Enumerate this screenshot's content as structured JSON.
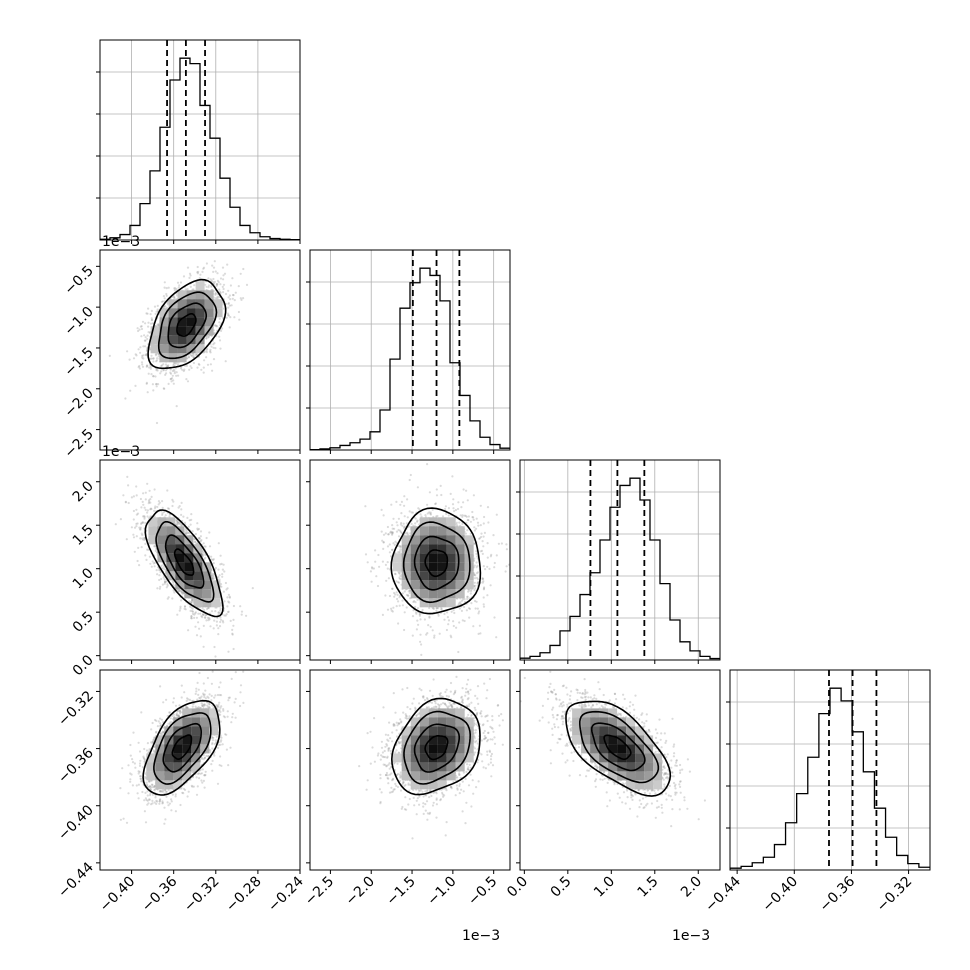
{
  "chart_data": {
    "type": "corner",
    "parameters": [
      {
        "range": [
          -0.43,
          -0.24
        ],
        "hist": [
          0.004,
          0.012,
          0.03,
          0.08,
          0.2,
          0.38,
          0.62,
          0.88,
          1.0,
          0.97,
          0.74,
          0.56,
          0.34,
          0.18,
          0.08,
          0.04,
          0.018,
          0.008,
          0.004,
          0.002
        ],
        "quantiles": [
          -0.3663,
          -0.3484,
          -0.3302
        ],
        "ticks": [
          -0.4,
          -0.36,
          -0.32,
          -0.28,
          -0.24
        ],
        "tick_labels": [
          "−0.40",
          "−0.36",
          "−0.32",
          "−0.28",
          "−0.24"
        ],
        "offset": ""
      },
      {
        "range": [
          -2.75,
          -0.3
        ],
        "hist": [
          0.002,
          0.006,
          0.012,
          0.025,
          0.04,
          0.06,
          0.1,
          0.22,
          0.5,
          0.78,
          0.92,
          1.0,
          0.96,
          0.82,
          0.48,
          0.3,
          0.16,
          0.07,
          0.03,
          0.01
        ],
        "quantiles": [
          -1.49,
          -1.2,
          -0.92
        ],
        "ticks": [
          -2.5,
          -2.0,
          -1.5,
          -1.0,
          -0.5
        ],
        "tick_labels": [
          "−2.5",
          "−2.0",
          "−1.5",
          "−1.0",
          "−0.5"
        ],
        "offset": "1e−3"
      },
      {
        "range": [
          -0.05,
          2.25
        ],
        "hist": [
          0.01,
          0.02,
          0.04,
          0.08,
          0.16,
          0.24,
          0.36,
          0.48,
          0.66,
          0.84,
          0.96,
          1.0,
          0.88,
          0.66,
          0.42,
          0.22,
          0.1,
          0.05,
          0.02,
          0.008
        ],
        "quantiles": [
          0.76,
          1.07,
          1.38
        ],
        "ticks": [
          0.0,
          0.5,
          1.0,
          1.5,
          2.0
        ],
        "tick_labels": [
          "0.0",
          "0.5",
          "1.0",
          "1.5",
          "2.0"
        ],
        "offset": "1e−3"
      },
      {
        "range": [
          -0.445,
          -0.305
        ],
        "hist": [
          0.01,
          0.02,
          0.04,
          0.07,
          0.14,
          0.26,
          0.42,
          0.62,
          0.86,
          1.0,
          0.93,
          0.76,
          0.54,
          0.34,
          0.18,
          0.08,
          0.035,
          0.015
        ],
        "quantiles": [
          -0.3757,
          -0.3592,
          -0.3425
        ],
        "ticks": [
          -0.44,
          -0.4,
          -0.36,
          -0.32
        ],
        "tick_labels": [
          "−0.44",
          "−0.40",
          "−0.36",
          "−0.32"
        ],
        "offset": ""
      }
    ],
    "pairs": [
      {
        "row": 1,
        "col": 0,
        "mean": [
          -0.348,
          -1.22
        ],
        "sd": [
          0.018,
          0.27
        ],
        "rho": 0.45
      },
      {
        "row": 2,
        "col": 0,
        "mean": [
          -0.35,
          1.07
        ],
        "sd": [
          0.018,
          0.3
        ],
        "rho": -0.7
      },
      {
        "row": 2,
        "col": 1,
        "mean": [
          -1.2,
          1.07
        ],
        "sd": [
          0.27,
          0.3
        ],
        "rho": 0.0
      },
      {
        "row": 3,
        "col": 0,
        "mean": [
          -0.352,
          -0.359
        ],
        "sd": [
          0.018,
          0.0165
        ],
        "rho": 0.55
      },
      {
        "row": 3,
        "col": 1,
        "mean": [
          -1.2,
          -0.359
        ],
        "sd": [
          0.27,
          0.0165
        ],
        "rho": 0.25
      },
      {
        "row": 3,
        "col": 2,
        "mean": [
          1.07,
          -0.359
        ],
        "sd": [
          0.3,
          0.0165
        ],
        "rho": -0.6
      }
    ],
    "grid_on": true
  }
}
